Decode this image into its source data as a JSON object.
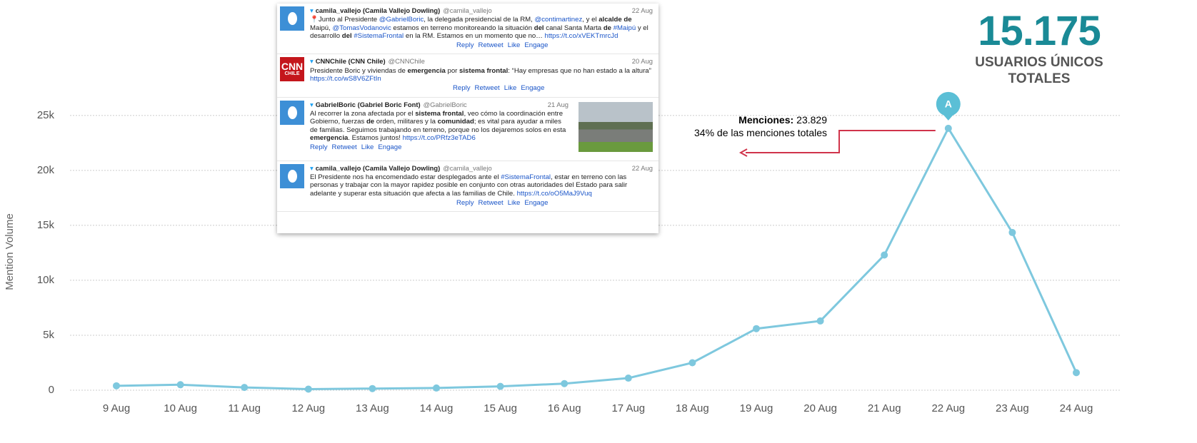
{
  "chart_data": {
    "type": "line",
    "y_label": "Mention Volume",
    "categories": [
      "9 Aug",
      "10 Aug",
      "11 Aug",
      "12 Aug",
      "13 Aug",
      "14 Aug",
      "15 Aug",
      "16 Aug",
      "17 Aug",
      "18 Aug",
      "19 Aug",
      "20 Aug",
      "21 Aug",
      "22 Aug",
      "23 Aug",
      "24 Aug"
    ],
    "series": [
      {
        "name": "Mention Volume",
        "color": "#7ec8de",
        "values": [
          400,
          500,
          250,
          100,
          150,
          200,
          350,
          600,
          1100,
          2500,
          5600,
          6300,
          12300,
          23829,
          14350,
          1600
        ]
      }
    ],
    "ylim": [
      0,
      27000
    ],
    "yticks": [
      0,
      {
        "value": 5000,
        "label": "5k"
      },
      {
        "value": 10000,
        "label": "10k"
      },
      {
        "value": 15000,
        "label": "15k"
      },
      {
        "value": 20000,
        "label": "20k"
      },
      {
        "value": 25000,
        "label": "25k"
      }
    ],
    "grid": true,
    "annotation": {
      "point": 13,
      "marker": "A",
      "label": "Menciones:",
      "value_label": "23.829",
      "note": "34% de las menciones totales",
      "color": "#d0344b"
    }
  },
  "kpi": {
    "value": "15.175",
    "lines": [
      "USUARIOS ÚNICOS",
      "TOTALES"
    ]
  },
  "tweets": {
    "actions": [
      "Reply",
      "Retweet",
      "Like",
      "Engage"
    ],
    "items": [
      {
        "name": "camila_vallejo (Camila Vallejo Dowling)",
        "handle": "@camila_vallejo",
        "date": "22 Aug",
        "body": [
          "📍Junto al Presidente ",
          {
            "a": "@GabrielBoric"
          },
          ", la delegada presidencial de la RM, ",
          {
            "a": "@contimartinez"
          },
          ", y el ",
          {
            "b": "alcalde de"
          },
          " Maipú, ",
          {
            "a": "@TomasVodanovic"
          },
          " estamos en terreno monitoreando la situación ",
          {
            "b": "del"
          },
          " canal Santa Marta ",
          {
            "b": "de"
          },
          " ",
          {
            "a": "#Maipú"
          },
          " y el desarrollo ",
          {
            "b": "del"
          },
          " ",
          {
            "a": "#SistemaFrontal"
          },
          " en la RM. Estamos en un momento que no… ",
          {
            "a": "https://t.co/xVEKTmrcJd"
          }
        ]
      },
      {
        "name": "CNNChile (CNN Chile)",
        "handle": "@CNNChile",
        "date": "20 Aug",
        "avatar_text": [
          "CNN",
          "CHILE"
        ],
        "body": [
          "Presidente Boric y viviendas de ",
          {
            "b": "emergencia"
          },
          " por ",
          {
            "b": "sistema frontal"
          },
          ": “Hay empresas que no han estado a la altura” ",
          {
            "a": "https://t.co/wS8V6ZFtIn"
          }
        ]
      },
      {
        "name": "GabrielBoric (Gabriel Boric Font)",
        "handle": "@GabrielBoric",
        "date": "21 Aug",
        "photo": true,
        "body": [
          "Al recorrer la zona afectada por el ",
          {
            "b": "sistema frontal"
          },
          ", veo cómo la coordinación entre Gobierno, fuerzas ",
          {
            "b": "de"
          },
          " orden, militares y la ",
          {
            "b": "comunidad"
          },
          "; es vital para ayudar a miles de familias. Seguimos trabajando en terreno, porque no los dejaremos solos en esta ",
          {
            "b": "emergencia"
          },
          ". Estamos juntos! ",
          {
            "a": "https://t.co/PRfz3eTAD6"
          }
        ]
      },
      {
        "name": "camila_vallejo (Camila Vallejo Dowling)",
        "handle": "@camila_vallejo",
        "date": "22 Aug",
        "body": [
          "El Presidente nos ha encomendado estar desplegados ante el ",
          {
            "a": "#SistemaFrontal"
          },
          ", estar en terreno con las personas y trabajar con la mayor rapidez posible en conjunto con otras autoridades del Estado para salir adelante y superar esta situación que afecta a las familias de Chile. ",
          {
            "a": "https://t.co/oO5MaJ9Vuq"
          }
        ]
      }
    ]
  }
}
